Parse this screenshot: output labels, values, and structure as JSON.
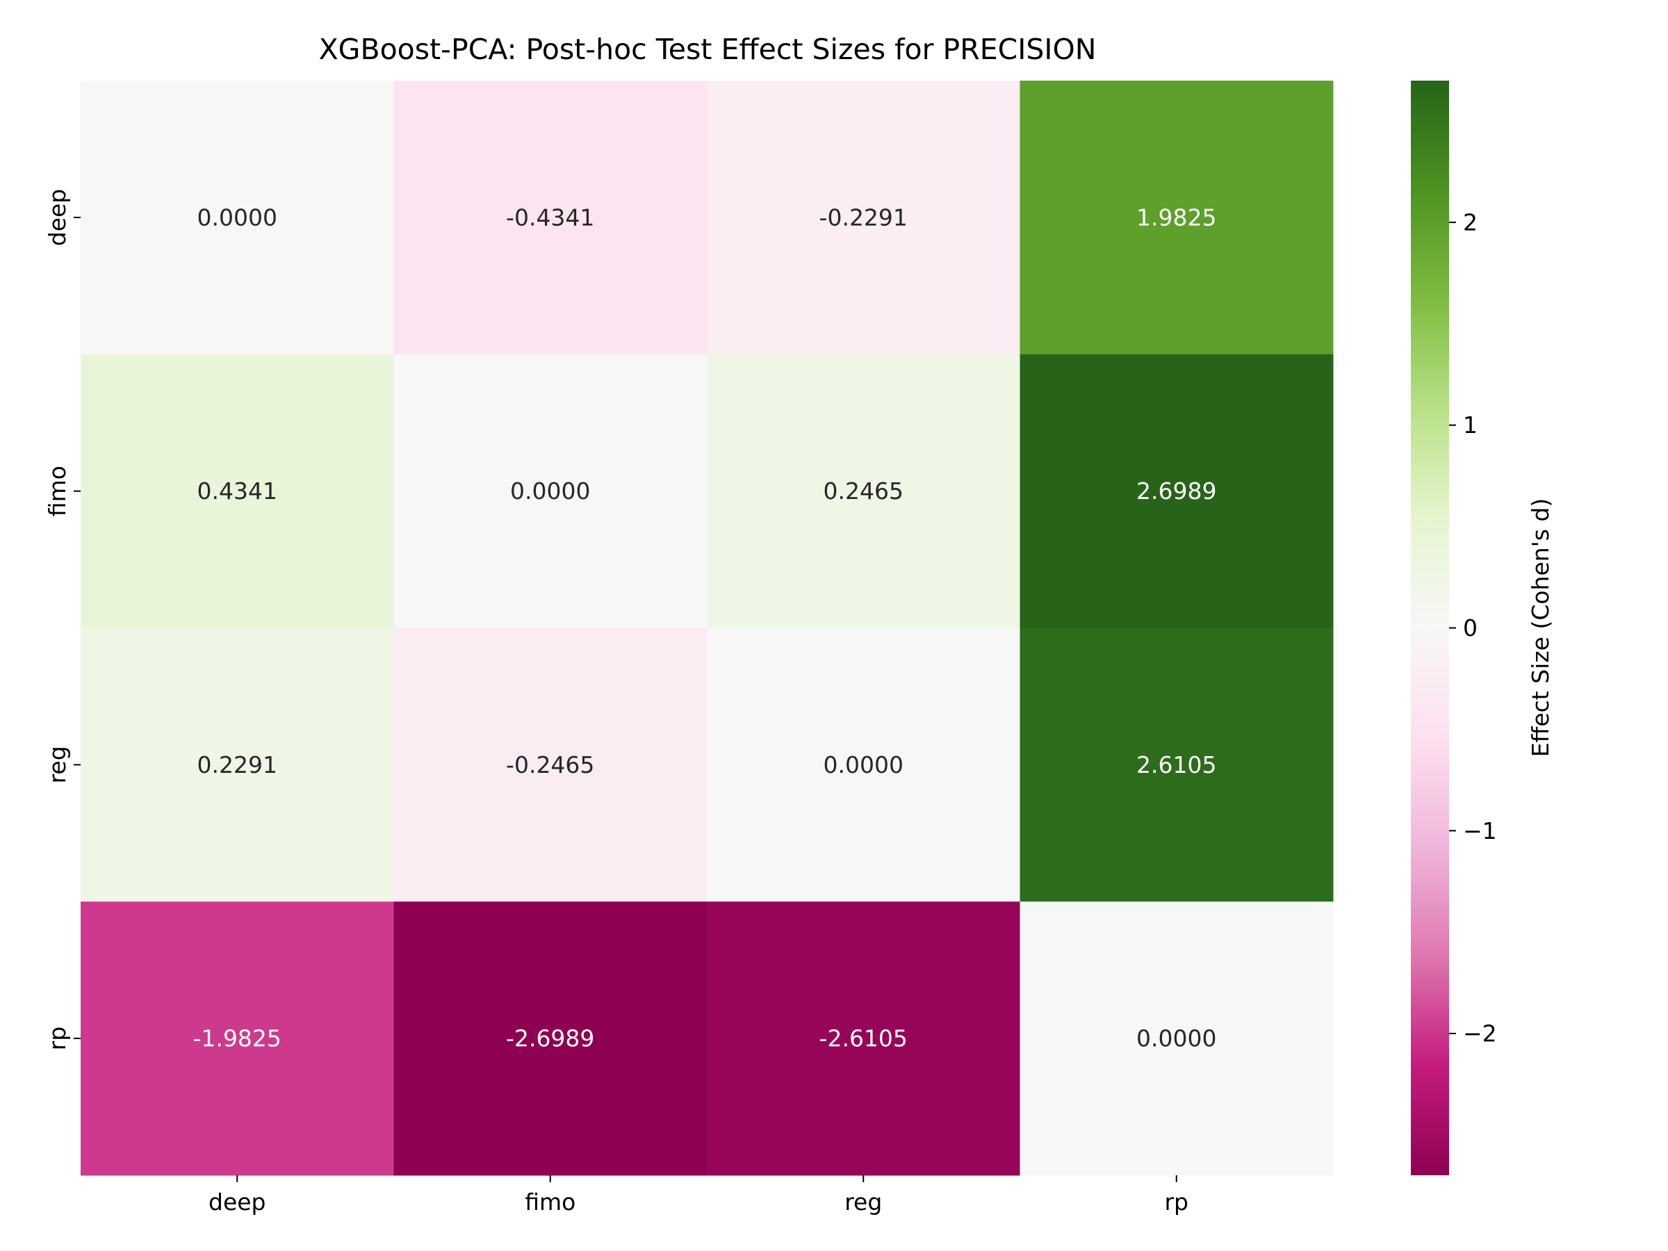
{
  "chart_data": {
    "type": "heatmap",
    "title": "XGBoost-PCA: Post-hoc Test Effect Sizes for PRECISION",
    "xlabel": "",
    "ylabel": "",
    "x_categories": [
      "deep",
      "fimo",
      "reg",
      "rp"
    ],
    "y_categories": [
      "deep",
      "fimo",
      "reg",
      "rp"
    ],
    "values": [
      [
        0.0,
        -0.4341,
        -0.2291,
        1.9825
      ],
      [
        0.4341,
        0.0,
        0.2465,
        2.6989
      ],
      [
        0.2291,
        -0.2465,
        0.0,
        2.6105
      ],
      [
        -1.9825,
        -2.6989,
        -2.6105,
        0.0
      ]
    ],
    "cell_labels": [
      [
        "0.0000",
        "-0.4341",
        "-0.2291",
        "1.9825"
      ],
      [
        "0.4341",
        "0.0000",
        "0.2465",
        "2.6989"
      ],
      [
        "0.2291",
        "-0.2465",
        "0.0000",
        "2.6105"
      ],
      [
        "-1.9825",
        "-2.6989",
        "-2.6105",
        "0.0000"
      ]
    ],
    "colormap": "PiYG",
    "vmin": -2.6989,
    "vmax": 2.6989,
    "grid": false,
    "colorbar": {
      "label": "Effect Size (Cohen's d)",
      "ticks": [
        2,
        1,
        0,
        -1,
        -2
      ],
      "tick_labels": [
        "2",
        "1",
        "0",
        "−1",
        "−2"
      ],
      "position": "right"
    }
  }
}
